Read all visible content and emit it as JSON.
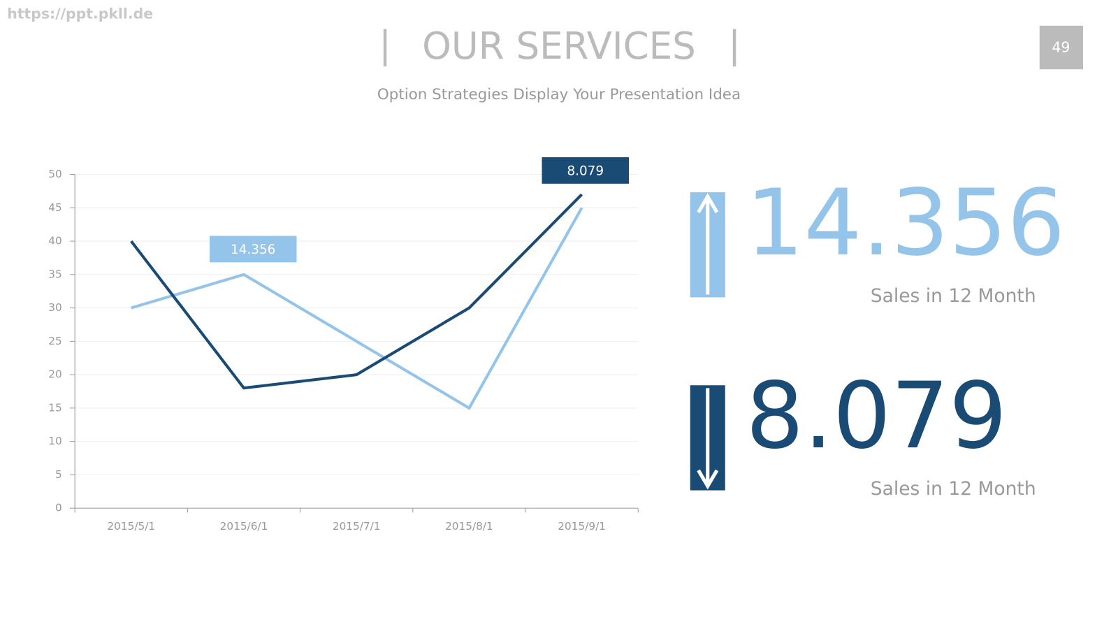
{
  "watermark": "https://ppt.pkll.de",
  "page_number": "49",
  "title": "OUR SERVICES",
  "subtitle": "Option Strategies Display Your Presentation Idea",
  "stats": [
    {
      "value": "14.356",
      "caption": "Sales in 12 Month",
      "color": "#94c4ea"
    },
    {
      "value": "8.079",
      "caption": "Sales in 12 Month",
      "color": "#1a4b74"
    }
  ],
  "chart_data": {
    "type": "line",
    "categories": [
      "2015/5/1",
      "2015/6/1",
      "2015/7/1",
      "2015/8/1",
      "2015/9/1"
    ],
    "series": [
      {
        "color": "#94c4ea",
        "values": [
          30,
          35,
          25,
          15,
          45
        ]
      },
      {
        "color": "#1a4b74",
        "values": [
          40,
          18,
          20,
          30,
          47
        ]
      }
    ],
    "annotations": [
      "14.356",
      "8.079"
    ],
    "ylim": [
      0,
      50
    ],
    "yticks": [
      0,
      5,
      10,
      15,
      20,
      25,
      30,
      35,
      40,
      45,
      50
    ],
    "grid": true
  }
}
